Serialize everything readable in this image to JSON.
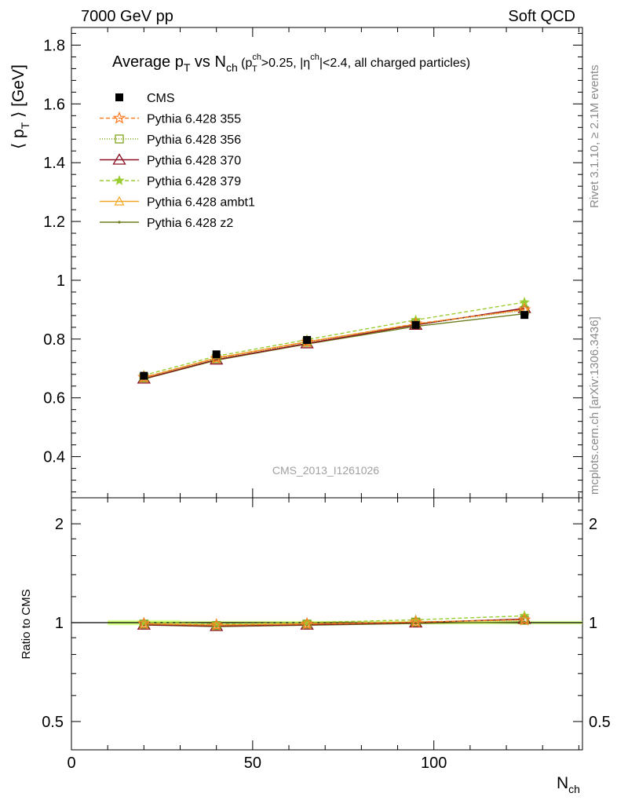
{
  "header": {
    "left": "7000 GeV pp",
    "right": "Soft QCD"
  },
  "side_labels": {
    "rivet": "Rivet 3.1.10, ≥ 2.1M events",
    "mcplots": "mcplots.cern.ch [arXiv:1306.3436]"
  },
  "watermark": "CMS_2013_I1261026",
  "colors": {
    "cms": "#000000",
    "p355": "#ff7f27",
    "p356": "#7fa51f",
    "p370": "#8b0f20",
    "p379": "#9acd32",
    "ambt1": "#f5a623",
    "z2": "#6b7d1c",
    "band": "#ccff66"
  },
  "chart_data": [
    {
      "type": "line",
      "title": "Average p_T vs N_ch (p_T^ch>0.25, |η^ch|<2.4, all charged particles)",
      "title_parts": {
        "main1": "Average p",
        "main1_sub": "T",
        "main2": " vs N",
        "main2_sub": "ch",
        "cut1": " (p",
        "cut1_sup": "ch",
        "cut1_sub": "T",
        "cut2": ">0.25, |η",
        "cut2_sup": "ch",
        "cut3": "|<2.4, all charged particles)"
      },
      "ylabel": "⟨ p_T ⟩ [GeV]",
      "ylabel_parts": {
        "open": "⟨ p",
        "sub": "T",
        "close": " ⟩ [GeV]"
      },
      "xlim": [
        0,
        141
      ],
      "ylim": [
        0.26,
        1.86
      ],
      "yticks": [
        0.4,
        0.6,
        0.8,
        1.0,
        1.2,
        1.4,
        1.6,
        1.8
      ],
      "ytick_labels": [
        "0.4",
        "0.6",
        "0.8",
        "1",
        "1.2",
        "1.4",
        "1.6",
        "1.8"
      ],
      "legend_position": "top-left",
      "x": [
        20,
        40,
        65,
        95,
        125
      ],
      "series": [
        {
          "name": "CMS",
          "key": "cms",
          "values": [
            0.675,
            0.748,
            0.797,
            0.848,
            0.882
          ]
        },
        {
          "name": "Pythia 6.428 355",
          "key": "p355",
          "values": [
            0.67,
            0.735,
            0.79,
            0.852,
            0.9
          ]
        },
        {
          "name": "Pythia 6.428 356",
          "key": "p356",
          "values": [
            0.668,
            0.733,
            0.789,
            0.851,
            0.897
          ]
        },
        {
          "name": "Pythia 6.428 370",
          "key": "p370",
          "values": [
            0.665,
            0.73,
            0.785,
            0.848,
            0.905
          ]
        },
        {
          "name": "Pythia 6.428 379",
          "key": "p379",
          "values": [
            0.677,
            0.742,
            0.798,
            0.865,
            0.925
          ]
        },
        {
          "name": "Pythia 6.428 ambt1",
          "key": "ambt1",
          "values": [
            0.669,
            0.736,
            0.791,
            0.85,
            0.902
          ]
        },
        {
          "name": "Pythia 6.428 z2",
          "key": "z2",
          "values": [
            0.664,
            0.728,
            0.783,
            0.843,
            0.886
          ]
        }
      ]
    },
    {
      "type": "line",
      "ylabel": "Ratio to CMS",
      "xlabel": "N_ch",
      "xlabel_parts": {
        "main": "N",
        "sub": "ch"
      },
      "xlim": [
        0,
        141
      ],
      "ylim": [
        0.41,
        2.4
      ],
      "log_y": true,
      "yticks": [
        0.5,
        1,
        2
      ],
      "ytick_labels": [
        "0.5",
        "1",
        "2"
      ],
      "xticks": [
        0,
        50,
        100
      ],
      "xtick_labels": [
        "0",
        "50",
        "100"
      ],
      "x": [
        20,
        40,
        65,
        95,
        125
      ],
      "series": [
        {
          "name": "Pythia 6.428 355",
          "key": "p355",
          "values": [
            0.993,
            0.983,
            0.991,
            1.005,
            1.02
          ]
        },
        {
          "name": "Pythia 6.428 356",
          "key": "p356",
          "values": [
            0.99,
            0.98,
            0.99,
            1.004,
            1.017
          ]
        },
        {
          "name": "Pythia 6.428 370",
          "key": "p370",
          "values": [
            0.985,
            0.976,
            0.985,
            1.0,
            1.026
          ]
        },
        {
          "name": "Pythia 6.428 379",
          "key": "p379",
          "values": [
            1.003,
            0.992,
            1.001,
            1.02,
            1.049
          ]
        },
        {
          "name": "Pythia 6.428 ambt1",
          "key": "ambt1",
          "values": [
            0.991,
            0.984,
            0.992,
            1.002,
            1.023
          ]
        },
        {
          "name": "Pythia 6.428 z2",
          "key": "z2",
          "values": [
            0.984,
            0.973,
            0.982,
            0.994,
            1.005
          ]
        }
      ]
    }
  ]
}
